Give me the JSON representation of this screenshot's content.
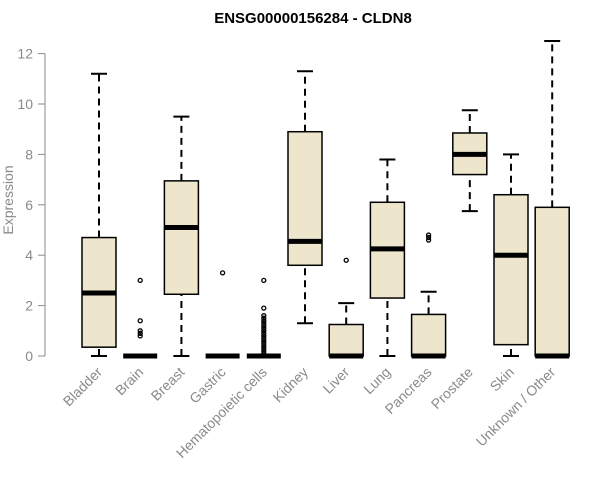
{
  "chart_data": {
    "type": "box",
    "title": "ENSG00000156284 - CLDN8",
    "xlabel": "",
    "ylabel": "Expression",
    "ylim": [
      0,
      12.5
    ],
    "yticks": [
      0,
      2,
      4,
      6,
      8,
      10,
      12
    ],
    "ytick_labels": [
      "0",
      "2",
      "4",
      "6",
      "8",
      "10",
      "12"
    ],
    "grid": false,
    "colors": {
      "box_fill": "#ede6cc",
      "axis": "#8a8a8a",
      "line": "#000000"
    },
    "categories": [
      "Bladder",
      "Brain",
      "Breast",
      "Gastric",
      "Hematopoietic cells",
      "Kidney",
      "Liver",
      "Lung",
      "Pancreas",
      "Prostate",
      "Skin",
      "Unknown / Other"
    ],
    "boxes": [
      {
        "category": "Bladder",
        "whisker_low": 0,
        "q1": 0.35,
        "median": 2.5,
        "q3": 4.7,
        "whisker_high": 11.2,
        "outliers": []
      },
      {
        "category": "Brain",
        "whisker_low": 0,
        "q1": 0,
        "median": 0,
        "q3": 0,
        "whisker_high": 0,
        "outliers": [
          0.8,
          0.9,
          1.0,
          1.4,
          3.0
        ]
      },
      {
        "category": "Breast",
        "whisker_low": 0,
        "q1": 2.45,
        "median": 5.1,
        "q3": 6.95,
        "whisker_high": 9.5,
        "outliers": []
      },
      {
        "category": "Gastric",
        "whisker_low": 0,
        "q1": 0,
        "median": 0,
        "q3": 0,
        "whisker_high": 0,
        "outliers": [
          3.3
        ]
      },
      {
        "category": "Hematopoietic cells",
        "whisker_low": 0,
        "q1": 0,
        "median": 0,
        "q3": 0,
        "whisker_high": 0,
        "outliers": [
          0.1,
          0.2,
          0.3,
          0.4,
          0.5,
          0.6,
          0.7,
          0.8,
          0.9,
          1.0,
          1.1,
          1.2,
          1.3,
          1.4,
          1.5,
          1.6,
          1.9,
          3.0
        ]
      },
      {
        "category": "Kidney",
        "whisker_low": 1.3,
        "q1": 3.6,
        "median": 4.55,
        "q3": 8.9,
        "whisker_high": 11.3,
        "outliers": []
      },
      {
        "category": "Liver",
        "whisker_low": 0,
        "q1": 0,
        "median": 0,
        "q3": 1.25,
        "whisker_high": 2.1,
        "outliers": [
          3.8
        ]
      },
      {
        "category": "Lung",
        "whisker_low": 0,
        "q1": 2.3,
        "median": 4.25,
        "q3": 6.1,
        "whisker_high": 7.8,
        "outliers": []
      },
      {
        "category": "Pancreas",
        "whisker_low": 0,
        "q1": 0,
        "median": 0,
        "q3": 1.65,
        "whisker_high": 2.55,
        "outliers": [
          4.6,
          4.7,
          4.8
        ]
      },
      {
        "category": "Prostate",
        "whisker_low": 5.75,
        "q1": 7.2,
        "median": 8.0,
        "q3": 8.85,
        "whisker_high": 9.75,
        "outliers": []
      },
      {
        "category": "Skin",
        "whisker_low": 0,
        "q1": 0.45,
        "median": 4.0,
        "q3": 6.4,
        "whisker_high": 8.0,
        "outliers": []
      },
      {
        "category": "Unknown / Other",
        "whisker_low": 0,
        "q1": 0,
        "median": 0,
        "q3": 5.9,
        "whisker_high": 12.5,
        "outliers": []
      }
    ]
  }
}
